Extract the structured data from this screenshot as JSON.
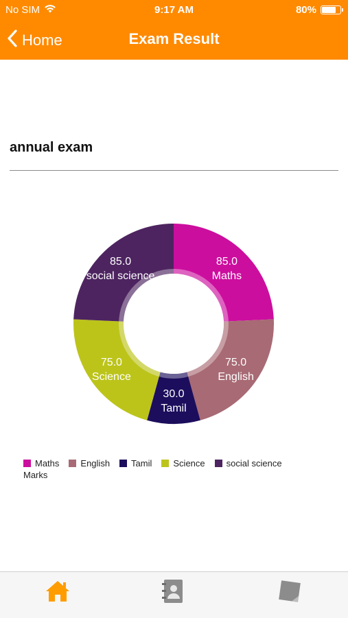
{
  "status_bar": {
    "carrier": "No SIM",
    "time": "9:17 AM",
    "battery": "80%",
    "battery_level": 0.8
  },
  "nav": {
    "back_label": "Home",
    "title": "Exam Result"
  },
  "section": {
    "title": "annual exam"
  },
  "chart_data": {
    "type": "pie",
    "donut": true,
    "description": "Marks",
    "slices": [
      {
        "label": "Maths",
        "value": 85.0,
        "value_label": "85.0",
        "color": "#cc0e9e"
      },
      {
        "label": "English",
        "value": 75.0,
        "value_label": "75.0",
        "color": "#a86a74"
      },
      {
        "label": "Tamil",
        "value": 30.0,
        "value_label": "30.0",
        "color": "#1c0e5c"
      },
      {
        "label": "Science",
        "value": 75.0,
        "value_label": "75.0",
        "color": "#bcc41a"
      },
      {
        "label": "social science",
        "value": 85.0,
        "value_label": "85.0",
        "color": "#4d2460"
      }
    ]
  },
  "colors": {
    "accent": "#ff8a00",
    "home_tab": "#ff9d00",
    "tab_inactive": "#8c8c8c"
  },
  "tabs": [
    {
      "name": "home",
      "icon": "home-icon",
      "active": true
    },
    {
      "name": "contacts",
      "icon": "contact-book-icon",
      "active": false
    },
    {
      "name": "notes",
      "icon": "sticky-note-icon",
      "active": false
    }
  ]
}
